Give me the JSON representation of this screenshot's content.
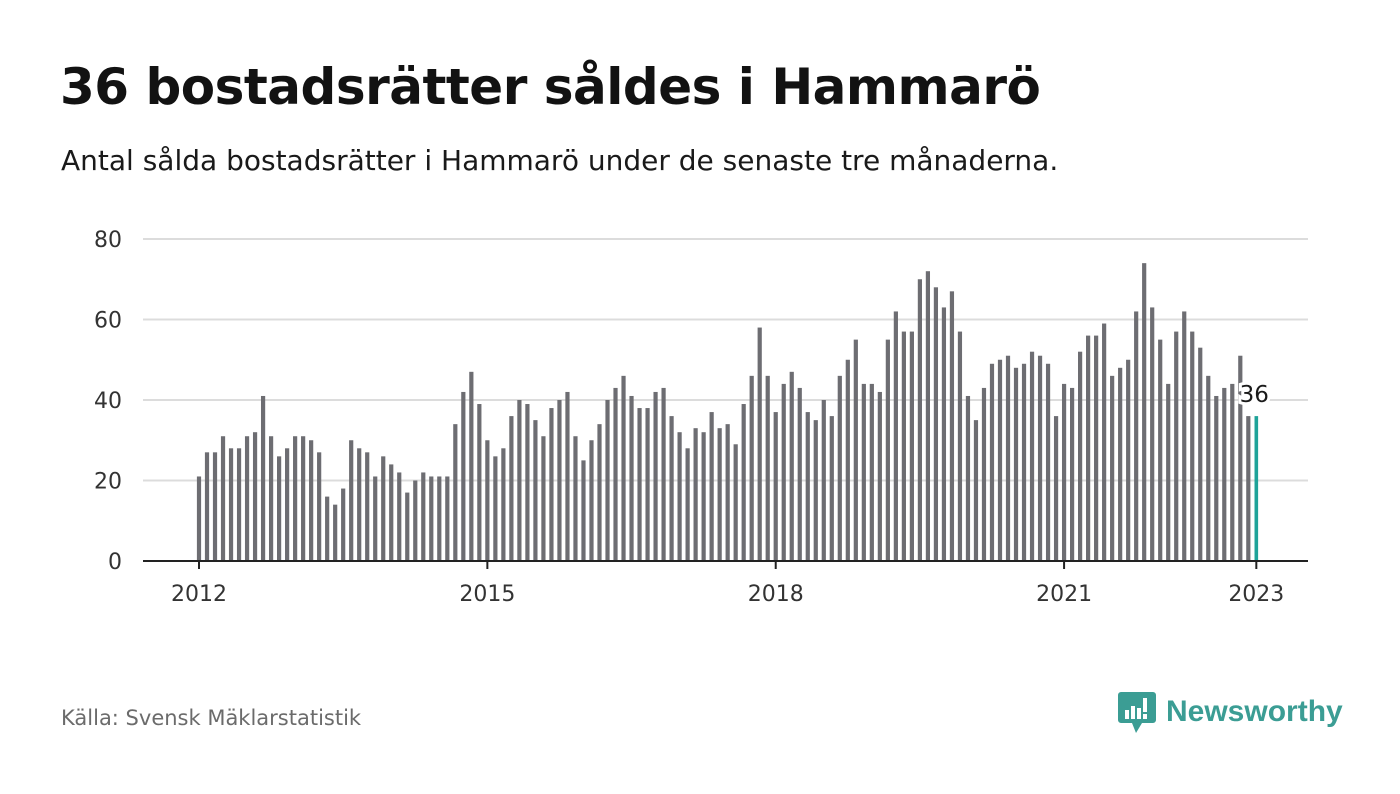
{
  "title": "36 bostadsrätter såldes i Hammarö",
  "subtitle": "Antal sålda bostadsrätter i Hammarö under de senaste tre månaderna.",
  "source": "Källa: Svensk Mäklarstatistik",
  "brand": {
    "name": "Newsworthy",
    "icon": "newsworthy-logo-icon"
  },
  "colors": {
    "bar": "#6d6d72",
    "highlight": "#1fa399",
    "grid": "#dcdcdc",
    "axis": "#222222",
    "brand": "#3b9d94"
  },
  "chart_data": {
    "type": "bar",
    "ylim": [
      0,
      80
    ],
    "yticks": [
      0,
      20,
      40,
      60,
      80
    ],
    "xticks": [
      "2012",
      "2015",
      "2018",
      "2021",
      "2023"
    ],
    "grid": true,
    "annotation": "36",
    "start": "2012-01",
    "values": [
      21,
      27,
      27,
      31,
      28,
      28,
      31,
      32,
      41,
      31,
      26,
      28,
      31,
      31,
      30,
      27,
      16,
      14,
      18,
      30,
      28,
      27,
      21,
      26,
      24,
      22,
      17,
      20,
      22,
      21,
      21,
      21,
      34,
      42,
      47,
      39,
      30,
      26,
      28,
      36,
      40,
      39,
      35,
      31,
      38,
      40,
      42,
      31,
      25,
      30,
      34,
      40,
      43,
      46,
      41,
      38,
      38,
      42,
      43,
      36,
      32,
      28,
      33,
      32,
      37,
      33,
      34,
      29,
      39,
      46,
      58,
      46,
      37,
      44,
      47,
      43,
      37,
      35,
      40,
      36,
      46,
      50,
      55,
      44,
      44,
      42,
      55,
      62,
      57,
      57,
      70,
      72,
      68,
      63,
      67,
      57,
      41,
      35,
      43,
      49,
      50,
      51,
      48,
      49,
      52,
      51,
      49,
      36,
      44,
      43,
      52,
      56,
      56,
      59,
      46,
      48,
      50,
      62,
      74,
      63,
      55,
      44,
      57,
      62,
      57,
      53,
      46,
      41,
      43,
      44,
      51,
      36,
      36
    ]
  }
}
